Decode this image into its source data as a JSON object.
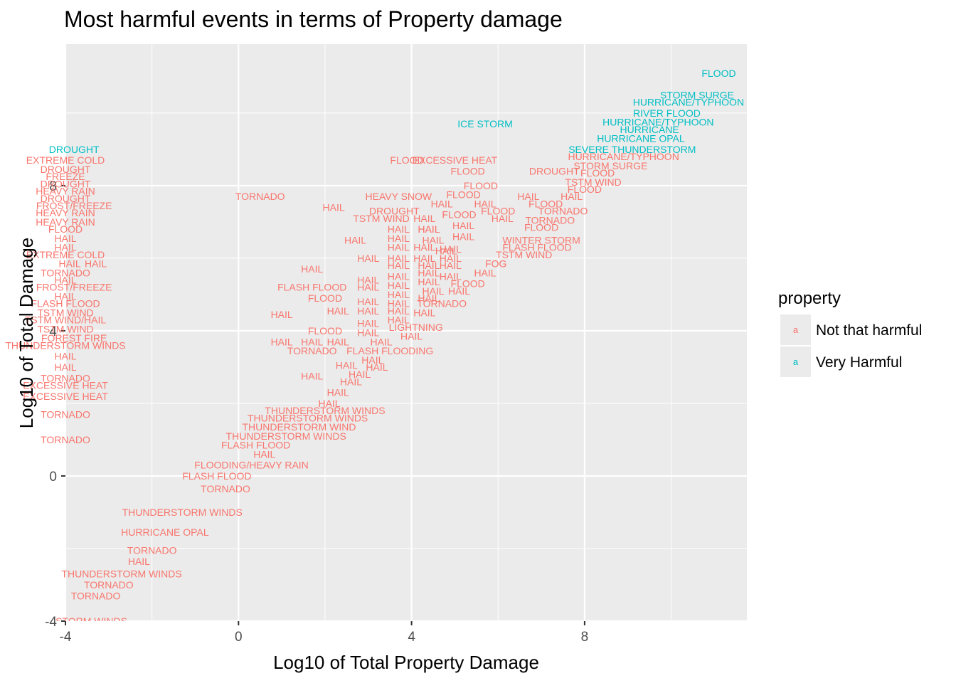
{
  "chart_data": {
    "type": "scatter",
    "title": "Most harmful events in terms of Property damage",
    "xlabel": "Log10 of Total Property Damage",
    "ylabel": "Log10 of Total Damage",
    "xlim": [
      -4,
      11.75
    ],
    "ylim": [
      -4,
      11.9
    ],
    "x_ticks": [
      -4,
      0,
      4,
      8
    ],
    "y_ticks": [
      -4,
      0,
      4,
      8
    ],
    "grid": true,
    "legend": {
      "title": "property",
      "position": "right",
      "key_glyph": "a",
      "entries": [
        {
          "name": "Not that harmful",
          "color": "#F8766D"
        },
        {
          "name": "Very Harmful",
          "color": "#00BFC4"
        }
      ]
    },
    "series": [
      {
        "name": "Very Harmful",
        "color": "#00BFC4",
        "points": [
          {
            "label": "FLOOD",
            "x": 11.1,
            "y": 11.1
          },
          {
            "label": "STORM SURGE",
            "x": 10.6,
            "y": 10.5
          },
          {
            "label": "HURRICANE/TYPHOON",
            "x": 10.4,
            "y": 10.3
          },
          {
            "label": "RIVER FLOOD",
            "x": 9.9,
            "y": 10.0
          },
          {
            "label": "HURRICANE/TYPHOON",
            "x": 9.7,
            "y": 9.75
          },
          {
            "label": "HURRICANE",
            "x": 9.5,
            "y": 9.55
          },
          {
            "label": "HURRICANE OPAL",
            "x": 9.3,
            "y": 9.3
          },
          {
            "label": "SEVERE THUNDERSTORM",
            "x": 9.1,
            "y": 9.0
          },
          {
            "label": "ICE STORM",
            "x": 5.7,
            "y": 9.7
          },
          {
            "label": "DROUGHT",
            "x": -3.8,
            "y": 9.0
          }
        ]
      },
      {
        "name": "Not that harmful",
        "color": "#F8766D",
        "points": [
          {
            "label": "HURRICANE/TYPHOON",
            "x": 8.9,
            "y": 8.8
          },
          {
            "label": "STORM SURGE",
            "x": 8.6,
            "y": 8.55
          },
          {
            "label": "DROUGHT",
            "x": 7.3,
            "y": 8.4
          },
          {
            "label": "FLOOD",
            "x": 8.3,
            "y": 8.35
          },
          {
            "label": "TSTM WIND",
            "x": 8.2,
            "y": 8.1
          },
          {
            "label": "FLOOD",
            "x": 8.0,
            "y": 7.9
          },
          {
            "label": "HAIL",
            "x": 7.7,
            "y": 7.7
          },
          {
            "label": "HAIL",
            "x": 6.7,
            "y": 7.7
          },
          {
            "label": "FLOOD",
            "x": 7.1,
            "y": 7.5
          },
          {
            "label": "TORNADO",
            "x": 7.5,
            "y": 7.3
          },
          {
            "label": "TORNADO",
            "x": 7.2,
            "y": 7.05
          },
          {
            "label": "FLOOD",
            "x": 7.0,
            "y": 6.85
          },
          {
            "label": "WINTER STORM",
            "x": 7.0,
            "y": 6.5
          },
          {
            "label": "FLASH FLOOD",
            "x": 6.9,
            "y": 6.3
          },
          {
            "label": "TSTM WIND",
            "x": 6.6,
            "y": 6.1
          },
          {
            "label": "FOG",
            "x": 5.95,
            "y": 5.85
          },
          {
            "label": "HAIL",
            "x": 5.7,
            "y": 5.6
          },
          {
            "label": "FLOOD",
            "x": 6.0,
            "y": 7.3
          },
          {
            "label": "HAIL",
            "x": 5.7,
            "y": 7.5
          },
          {
            "label": "HAIL",
            "x": 6.1,
            "y": 7.1
          },
          {
            "label": "FLOOD",
            "x": 5.6,
            "y": 8.0
          },
          {
            "label": "FLOOD",
            "x": 5.2,
            "y": 7.75
          },
          {
            "label": "FLOOD",
            "x": 5.1,
            "y": 7.2
          },
          {
            "label": "HAIL",
            "x": 4.7,
            "y": 7.5
          },
          {
            "label": "HAIL",
            "x": 5.2,
            "y": 6.9
          },
          {
            "label": "HAIL",
            "x": 5.2,
            "y": 6.6
          },
          {
            "label": "HAIL",
            "x": 4.9,
            "y": 6.25
          },
          {
            "label": "HAIL",
            "x": 4.5,
            "y": 6.5
          },
          {
            "label": "HAIL",
            "x": 4.4,
            "y": 6.8
          },
          {
            "label": "FLOOD",
            "x": 5.3,
            "y": 8.4
          },
          {
            "label": "FLOOD",
            "x": 3.9,
            "y": 8.7
          },
          {
            "label": "EXCESSIVE HEAT",
            "x": 5.0,
            "y": 8.7
          },
          {
            "label": "TORNADO",
            "x": 0.5,
            "y": 7.7
          },
          {
            "label": "HEAVY SNOW",
            "x": 3.7,
            "y": 7.7
          },
          {
            "label": "HAIL",
            "x": 2.2,
            "y": 7.4
          },
          {
            "label": "DROUGHT",
            "x": 3.6,
            "y": 7.3
          },
          {
            "label": "TSTM WIND",
            "x": 3.3,
            "y": 7.1
          },
          {
            "label": "HAIL",
            "x": 4.3,
            "y": 7.1
          },
          {
            "label": "HAIL",
            "x": 2.7,
            "y": 6.5
          },
          {
            "label": "HAIL",
            "x": 3.7,
            "y": 6.8
          },
          {
            "label": "HAIL",
            "x": 4.4,
            "y": 6.8
          },
          {
            "label": "HAIL",
            "x": 3.7,
            "y": 6.55
          },
          {
            "label": "HAIL",
            "x": 3.7,
            "y": 6.3
          },
          {
            "label": "HAIL",
            "x": 4.3,
            "y": 6.3
          },
          {
            "label": "HAIL",
            "x": 4.8,
            "y": 6.2
          },
          {
            "label": "HAIL",
            "x": 3.0,
            "y": 6.0
          },
          {
            "label": "HAIL",
            "x": 3.7,
            "y": 6.0
          },
          {
            "label": "HAIL",
            "x": 4.3,
            "y": 6.0
          },
          {
            "label": "HAIL",
            "x": 4.9,
            "y": 6.0
          },
          {
            "label": "HAIL",
            "x": 3.7,
            "y": 5.8
          },
          {
            "label": "HAIL",
            "x": 4.4,
            "y": 5.8
          },
          {
            "label": "HAIL",
            "x": 4.9,
            "y": 5.8
          },
          {
            "label": "HAIL",
            "x": 1.7,
            "y": 5.7
          },
          {
            "label": "HAIL",
            "x": 3.0,
            "y": 5.4
          },
          {
            "label": "HAIL",
            "x": 3.0,
            "y": 5.2
          },
          {
            "label": "HAIL",
            "x": 3.7,
            "y": 5.5
          },
          {
            "label": "HAIL",
            "x": 3.7,
            "y": 5.25
          },
          {
            "label": "HAIL",
            "x": 4.4,
            "y": 5.6
          },
          {
            "label": "HAIL",
            "x": 4.4,
            "y": 5.35
          },
          {
            "label": "HAIL",
            "x": 4.9,
            "y": 5.5
          },
          {
            "label": "FLOOD",
            "x": 5.3,
            "y": 5.3
          },
          {
            "label": "HAIL",
            "x": 4.5,
            "y": 5.1
          },
          {
            "label": "HAIL",
            "x": 5.1,
            "y": 5.1
          },
          {
            "label": "FLASH FLOOD",
            "x": 1.7,
            "y": 5.2
          },
          {
            "label": "FLOOD",
            "x": 2.0,
            "y": 4.9
          },
          {
            "label": "HAIL",
            "x": 3.7,
            "y": 5.0
          },
          {
            "label": "HAIL",
            "x": 4.4,
            "y": 4.9
          },
          {
            "label": "HAIL",
            "x": 3.0,
            "y": 4.8
          },
          {
            "label": "HAIL",
            "x": 3.7,
            "y": 4.75
          },
          {
            "label": "TORNADO",
            "x": 4.7,
            "y": 4.75
          },
          {
            "label": "HAIL",
            "x": 3.0,
            "y": 4.55
          },
          {
            "label": "HAIL",
            "x": 3.7,
            "y": 4.55
          },
          {
            "label": "HAIL",
            "x": 4.3,
            "y": 4.5
          },
          {
            "label": "HAIL",
            "x": 2.3,
            "y": 4.55
          },
          {
            "label": "HAIL",
            "x": 1.0,
            "y": 4.45
          },
          {
            "label": "HAIL",
            "x": 3.7,
            "y": 4.3
          },
          {
            "label": "HAIL",
            "x": 3.0,
            "y": 4.2
          },
          {
            "label": "LIGHTNING",
            "x": 4.1,
            "y": 4.1
          },
          {
            "label": "FLOOD",
            "x": 2.0,
            "y": 4.0
          },
          {
            "label": "HAIL",
            "x": 3.0,
            "y": 3.95
          },
          {
            "label": "HAIL",
            "x": 4.0,
            "y": 3.85
          },
          {
            "label": "HAIL",
            "x": 1.0,
            "y": 3.7
          },
          {
            "label": "HAIL",
            "x": 1.7,
            "y": 3.7
          },
          {
            "label": "HAIL",
            "x": 2.3,
            "y": 3.7
          },
          {
            "label": "HAIL",
            "x": 3.3,
            "y": 3.7
          },
          {
            "label": "TORNADO",
            "x": 1.7,
            "y": 3.45
          },
          {
            "label": "FLASH FLOODING",
            "x": 3.5,
            "y": 3.45
          },
          {
            "label": "HAIL",
            "x": 3.1,
            "y": 3.2
          },
          {
            "label": "HAIL",
            "x": 2.5,
            "y": 3.05
          },
          {
            "label": "HAIL",
            "x": 3.2,
            "y": 3.0
          },
          {
            "label": "HAIL",
            "x": 2.8,
            "y": 2.8
          },
          {
            "label": "HAIL",
            "x": 1.7,
            "y": 2.75
          },
          {
            "label": "HAIL",
            "x": 2.6,
            "y": 2.6
          },
          {
            "label": "HAIL",
            "x": 2.3,
            "y": 2.3
          },
          {
            "label": "HAIL",
            "x": 2.1,
            "y": 2.0
          },
          {
            "label": "THUNDERSTORM WINDS",
            "x": 2.0,
            "y": 1.8
          },
          {
            "label": "THUNDERSTORM WINDS",
            "x": 1.6,
            "y": 1.6
          },
          {
            "label": "THUNDERSTORM WIND",
            "x": 1.4,
            "y": 1.35
          },
          {
            "label": "THUNDERSTORM WINDS",
            "x": 1.1,
            "y": 1.1
          },
          {
            "label": "FLASH FLOOD",
            "x": 0.4,
            "y": 0.85
          },
          {
            "label": "HAIL",
            "x": 0.6,
            "y": 0.6
          },
          {
            "label": "FLOODING/HEAVY RAIN",
            "x": 0.3,
            "y": 0.3
          },
          {
            "label": "FLASH FLOOD",
            "x": -0.5,
            "y": 0.0
          },
          {
            "label": "TORNADO",
            "x": -0.3,
            "y": -0.35
          },
          {
            "label": "THUNDERSTORM WINDS",
            "x": -1.3,
            "y": -1.0
          },
          {
            "label": "HURRICANE OPAL",
            "x": -1.7,
            "y": -1.55
          },
          {
            "label": "TORNADO",
            "x": -2.0,
            "y": -2.05
          },
          {
            "label": "HAIL",
            "x": -2.3,
            "y": -2.35
          },
          {
            "label": "THUNDERSTORM WINDS",
            "x": -2.7,
            "y": -2.7
          },
          {
            "label": "TORNADO",
            "x": -3.0,
            "y": -3.0
          },
          {
            "label": "TORNADO",
            "x": -3.3,
            "y": -3.3
          },
          {
            "label": "STORM WINDS",
            "x": -3.4,
            "y": -4.0
          },
          {
            "label": "EXTREME COLD",
            "x": -4.0,
            "y": 8.7
          },
          {
            "label": "DROUGHT",
            "x": -4.0,
            "y": 8.45
          },
          {
            "label": "FREEZE",
            "x": -4.0,
            "y": 8.25
          },
          {
            "label": "DROUGHT",
            "x": -4.0,
            "y": 8.05
          },
          {
            "label": "HEAVY RAIN",
            "x": -4.0,
            "y": 7.85
          },
          {
            "label": "DROUGHT",
            "x": -4.0,
            "y": 7.65
          },
          {
            "label": "FROST/FREEZE",
            "x": -3.8,
            "y": 7.45
          },
          {
            "label": "HEAVY RAIN",
            "x": -4.0,
            "y": 7.25
          },
          {
            "label": "HEAVY RAIN",
            "x": -4.0,
            "y": 7.0
          },
          {
            "label": "FLOOD",
            "x": -4.0,
            "y": 6.8
          },
          {
            "label": "HAIL",
            "x": -4.0,
            "y": 6.55
          },
          {
            "label": "HAIL",
            "x": -4.0,
            "y": 6.3
          },
          {
            "label": "EXTREME COLD",
            "x": -4.0,
            "y": 6.1
          },
          {
            "label": "HAIL",
            "x": -3.9,
            "y": 5.85
          },
          {
            "label": "HAIL",
            "x": -3.3,
            "y": 5.85
          },
          {
            "label": "TORNADO",
            "x": -4.0,
            "y": 5.6
          },
          {
            "label": "HAIL",
            "x": -4.0,
            "y": 5.4
          },
          {
            "label": "FROST/FREEZE",
            "x": -3.8,
            "y": 5.2
          },
          {
            "label": "HAIL",
            "x": -4.0,
            "y": 4.95
          },
          {
            "label": "FLASH FLOOD",
            "x": -4.0,
            "y": 4.75
          },
          {
            "label": "TSTM WIND",
            "x": -4.0,
            "y": 4.5
          },
          {
            "label": "TSTM WIND/HAIL",
            "x": -4.0,
            "y": 4.3
          },
          {
            "label": "TSTM WIND",
            "x": -4.0,
            "y": 4.05
          },
          {
            "label": "FOREST FIRE",
            "x": -3.8,
            "y": 3.8
          },
          {
            "label": "THUNDERSTORM WINDS",
            "x": -4.0,
            "y": 3.6
          },
          {
            "label": "HAIL",
            "x": -4.0,
            "y": 3.3
          },
          {
            "label": "HAIL",
            "x": -4.0,
            "y": 3.0
          },
          {
            "label": "TORNADO",
            "x": -4.0,
            "y": 2.7
          },
          {
            "label": "EXCESSIVE HEAT",
            "x": -4.0,
            "y": 2.5
          },
          {
            "label": "EXCESSIVE HEAT",
            "x": -4.0,
            "y": 2.2
          },
          {
            "label": "TORNADO",
            "x": -4.0,
            "y": 1.7
          },
          {
            "label": "TORNADO",
            "x": -4.0,
            "y": 1.0
          }
        ]
      }
    ]
  }
}
